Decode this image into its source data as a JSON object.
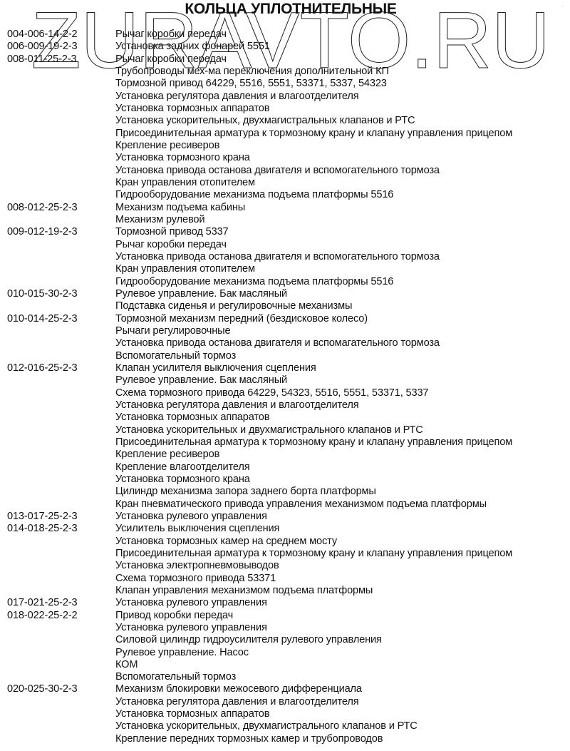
{
  "title": "КОЛЬЦА УПЛОТНИТЕЛЬНЫЕ",
  "watermark": "ZURAVTO.RU",
  "rows": [
    {
      "code": "004-006-14-2-2",
      "desc": "Рычаг коробки передач"
    },
    {
      "code": "006-009-19-2-3",
      "desc": "Установка задних фонарей 5551"
    },
    {
      "code": "008-011-25-2-3",
      "desc": "Рычаг коробки передач"
    },
    {
      "code": "",
      "desc": "Трубопроводы мех-ма переключения дополнительной КП"
    },
    {
      "code": "",
      "desc": "Тормозной привод 64229, 5516, 5551, 53371, 5337, 54323"
    },
    {
      "code": "",
      "desc": "Установка регулятора давления и влагоотделителя"
    },
    {
      "code": "",
      "desc": "Установка тормозных аппаратов"
    },
    {
      "code": "",
      "desc": "Установка ускорительных, двухмагистральных клапанов и РТС"
    },
    {
      "code": "",
      "desc": "Присоединительная арматура к тормозному крану и клапану управления прицепом"
    },
    {
      "code": "",
      "desc": "Крепление ресиверов"
    },
    {
      "code": "",
      "desc": "Установка тормозного крана"
    },
    {
      "code": "",
      "desc": "Установка привода останова двигателя и вспомогательного тормоза"
    },
    {
      "code": "",
      "desc": "Кран управления отопителем"
    },
    {
      "code": "",
      "desc": "Гидрооборудование механизма подъема платформы 5516"
    },
    {
      "code": "008-012-25-2-3",
      "desc": "Механизм подъема кабины"
    },
    {
      "code": "",
      "desc": "Механизм рулевой"
    },
    {
      "code": "009-012-19-2-3",
      "desc": "Тормозной привод 5337"
    },
    {
      "code": "",
      "desc": "Рычаг коробки передач"
    },
    {
      "code": "",
      "desc": "Установка привода останова двигателя и вспомогательного тормоза"
    },
    {
      "code": "",
      "desc": "Кран управления отопителем"
    },
    {
      "code": "",
      "desc": "Гидрооборудование механизма подъема платформы 5516"
    },
    {
      "code": "010-015-30-2-3",
      "desc": "Рулевое управление. Бак масляный"
    },
    {
      "code": "",
      "desc": "Подставка сиденья и регулировочные механизмы"
    },
    {
      "code": "010-014-25-2-3",
      "desc": "Тормозной механизм передний (бездисковое колесо)"
    },
    {
      "code": "",
      "desc": "Рычаги регулировочные"
    },
    {
      "code": "",
      "desc": "Установка привода останова двигателя и вспомагательного тормоза"
    },
    {
      "code": "",
      "desc": "Вспомогательный тормоз"
    },
    {
      "code": "012-016-25-2-3",
      "desc": "Клапан усилителя выключения сцепления"
    },
    {
      "code": "",
      "desc": "Рулевое управление. Бак масляный"
    },
    {
      "code": "",
      "desc": "Схема тормозного привода 64229, 54323, 5516, 5551, 53371, 5337"
    },
    {
      "code": "",
      "desc": "Установка регулятора давления и влагоотделителя"
    },
    {
      "code": "",
      "desc": "Установка тормозных аппаратов"
    },
    {
      "code": "",
      "desc": "Установка ускорительных  и двухмагистрального клапанов и РТС"
    },
    {
      "code": "",
      "desc": "Присоединительная арматура к тормозному крану и клапану управления прицепом"
    },
    {
      "code": "",
      "desc": "Крепление ресиверов"
    },
    {
      "code": "",
      "desc": "Крепление влагоотделителя"
    },
    {
      "code": "",
      "desc": "Установка тормозного крана"
    },
    {
      "code": "",
      "desc": "Цилиндр механизма запора заднего борта платформы"
    },
    {
      "code": "",
      "desc": "Кран пневматического привода управления механизмом подъема платформы"
    },
    {
      "code": "013-017-25-2-3",
      "desc": "Установка рулевого управления"
    },
    {
      "code": "014-018-25-2-3",
      "desc": "Усилитель выключения сцепления"
    },
    {
      "code": "",
      "desc": "Установка тормозных камер на среднем мосту"
    },
    {
      "code": "",
      "desc": "Присоединительная арматура к тормозному крану и клапану управления прицепом"
    },
    {
      "code": "",
      "desc": "Установка электропневмовыводов"
    },
    {
      "code": "",
      "desc": "Схема тормозного привода 53371"
    },
    {
      "code": "",
      "desc": "Клапан управления механизмом подъема платформы"
    },
    {
      "code": "017-021-25-2-3",
      "desc": "Установка рулевого управления"
    },
    {
      "code": "018-022-25-2-2",
      "desc": "Привод коробки передач"
    },
    {
      "code": "",
      "desc": "Установка рулевого управления"
    },
    {
      "code": "",
      "desc": "Силовой цилиндр гидроусилителя рулевого управления"
    },
    {
      "code": "",
      "desc": "Рулевое управление. Насос"
    },
    {
      "code": "",
      "desc": "КОМ"
    },
    {
      "code": "",
      "desc": "Вспомогательный тормоз"
    },
    {
      "code": "020-025-30-2-3",
      "desc": "Механизм блокировки межосевого дифференциала"
    },
    {
      "code": "",
      "desc": "Установка регулятора давления и влагоотделителя"
    },
    {
      "code": "",
      "desc": "Установка тормозных аппаратов"
    },
    {
      "code": "",
      "desc": "Установка ускорительных, двухмагистрального клапанов и РТС"
    },
    {
      "code": "",
      "desc": "Крепление передних тормозных камер и трубопроводов"
    }
  ]
}
